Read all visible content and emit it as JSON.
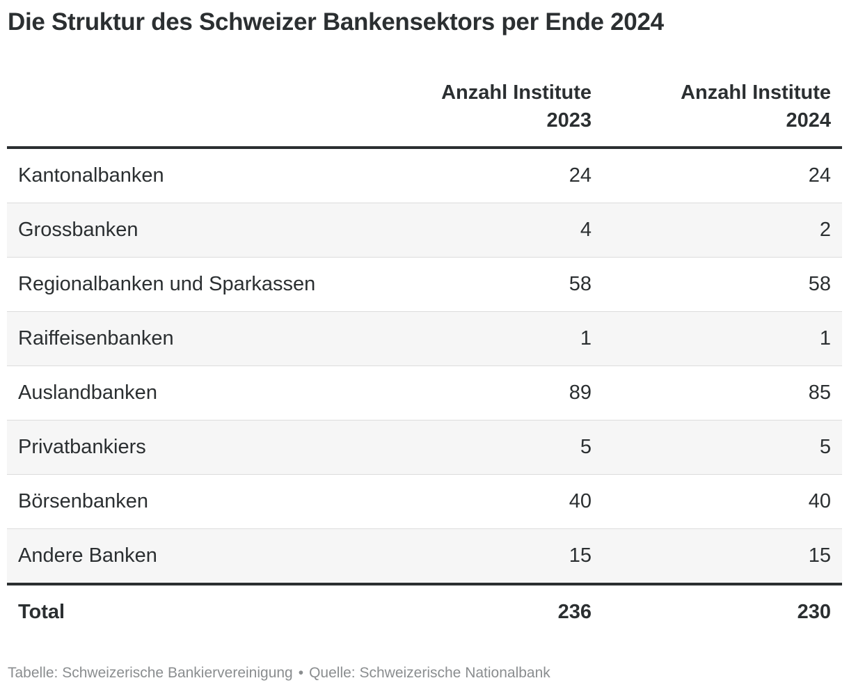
{
  "title": "Die Struktur des Schweizer Bankensektors per Ende 2024",
  "footer": {
    "table_credit": "Tabelle: Schweizerische Bankiervereinigung",
    "separator": "•",
    "source": "Quelle: Schweizerische Nationalbank"
  },
  "chart_data": {
    "type": "table",
    "title": "Die Struktur des Schweizer Bankensektors per Ende 2024",
    "columns": [
      {
        "label_line1": "Anzahl Institute",
        "label_line2": "2023"
      },
      {
        "label_line1": "Anzahl Institute",
        "label_line2": "2024"
      }
    ],
    "rows": [
      {
        "label": "Kantonalbanken",
        "v2023": "24",
        "v2024": "24"
      },
      {
        "label": "Grossbanken",
        "v2023": "4",
        "v2024": "2"
      },
      {
        "label": "Regionalbanken und Sparkassen",
        "v2023": "58",
        "v2024": "58"
      },
      {
        "label": "Raiffeisenbanken",
        "v2023": "1",
        "v2024": "1"
      },
      {
        "label": "Auslandbanken",
        "v2023": "89",
        "v2024": "85"
      },
      {
        "label": "Privatbankiers",
        "v2023": "5",
        "v2024": "5"
      },
      {
        "label": "Börsenbanken",
        "v2023": "40",
        "v2024": "40"
      },
      {
        "label": "Andere Banken",
        "v2023": "15",
        "v2024": "15"
      }
    ],
    "total": {
      "label": "Total",
      "v2023": "236",
      "v2024": "230"
    },
    "colors": {
      "text": "#2b2f31",
      "row_stripe": "#f6f6f6",
      "footer_text": "#8a8d8f"
    }
  }
}
